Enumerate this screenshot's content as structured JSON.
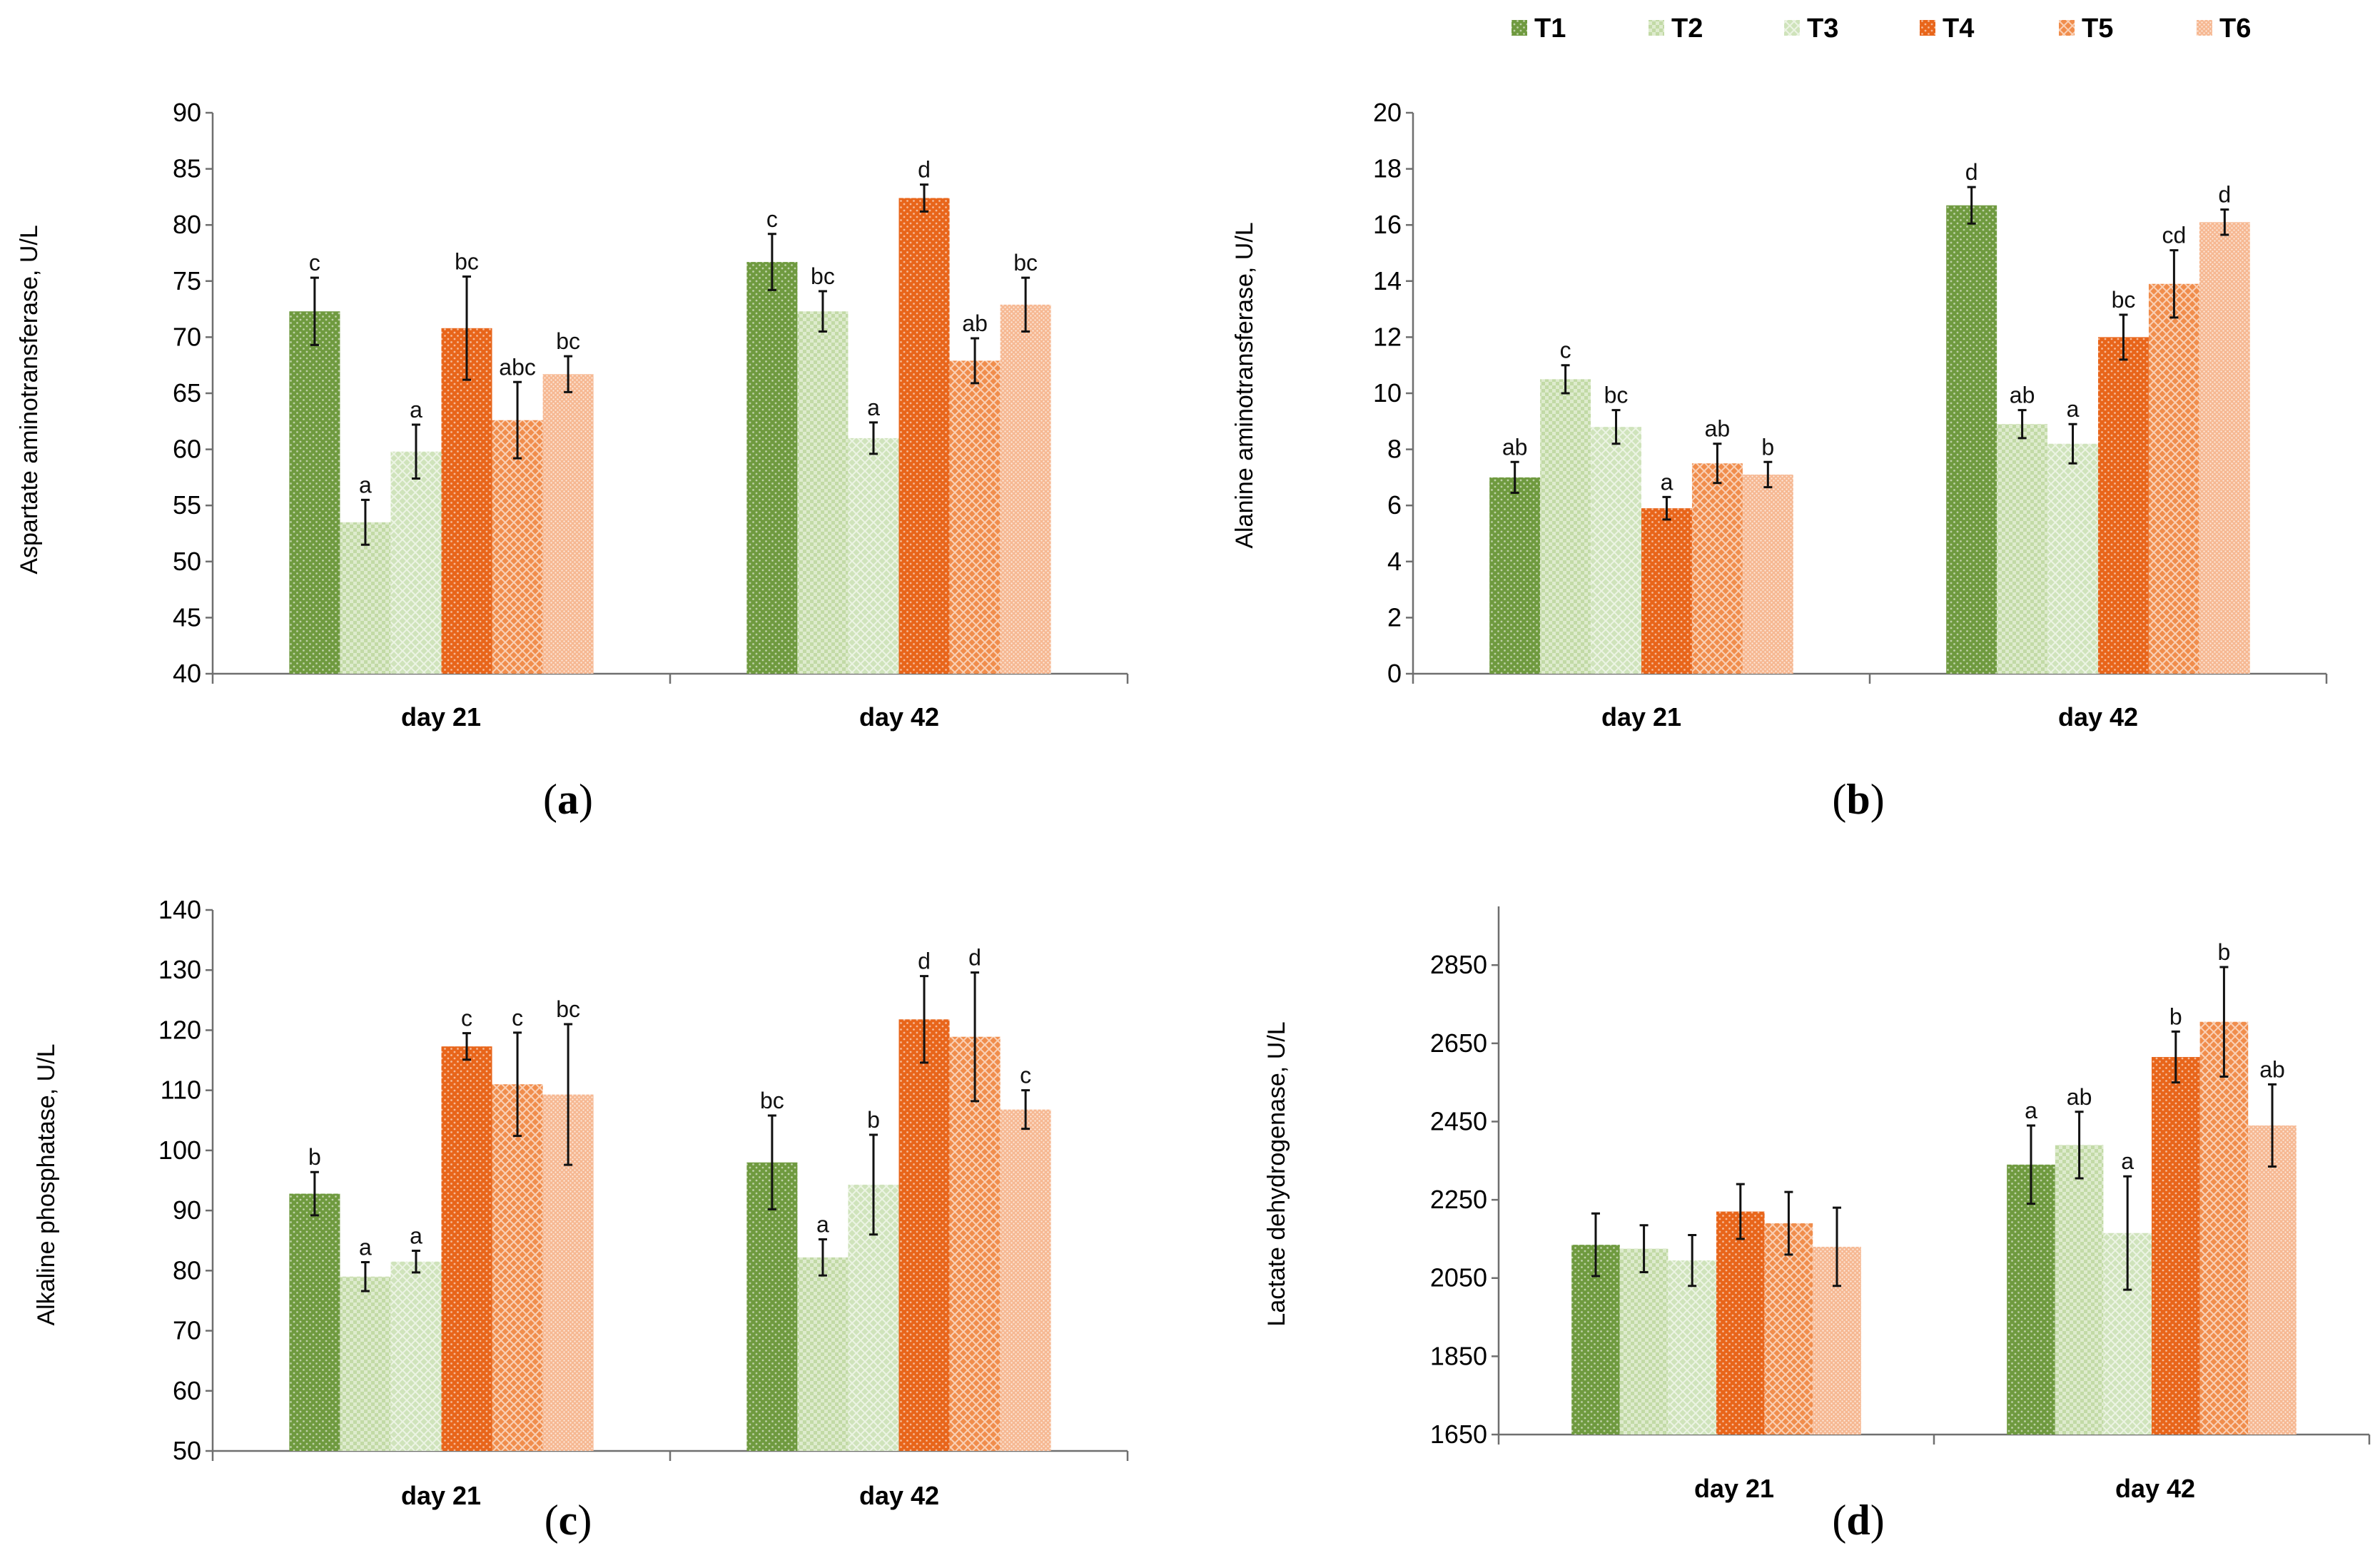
{
  "legend": [
    {
      "name": "T1",
      "color": "#6f9a3f",
      "pattern": "dots"
    },
    {
      "name": "T2",
      "color": "#c2daa6",
      "pattern": "checker"
    },
    {
      "name": "T3",
      "color": "#cfe3bb",
      "pattern": "diamond"
    },
    {
      "name": "T4",
      "color": "#e8651a",
      "pattern": "dots"
    },
    {
      "name": "T5",
      "color": "#f08d4c",
      "pattern": "diamond"
    },
    {
      "name": "T6",
      "color": "#f6b892",
      "pattern": "fine"
    }
  ],
  "chart_data": [
    {
      "type": "bar",
      "panel_label": "a",
      "ylabel": "Aspartate aminotransferase, U/L",
      "categories": [
        "day 21",
        "day 42"
      ],
      "ylim": [
        40,
        90
      ],
      "yticks": [
        40,
        45,
        50,
        55,
        60,
        65,
        70,
        75,
        80,
        85,
        90
      ],
      "series": [
        {
          "name": "T1",
          "values": [
            72.3,
            76.7
          ],
          "errors": [
            3.0,
            2.5
          ],
          "letters": [
            "c",
            "c"
          ]
        },
        {
          "name": "T2",
          "values": [
            53.5,
            72.3
          ],
          "errors": [
            2.0,
            1.8
          ],
          "letters": [
            "a",
            "bc"
          ]
        },
        {
          "name": "T3",
          "values": [
            59.8,
            61.0
          ],
          "errors": [
            2.4,
            1.4
          ],
          "letters": [
            "a",
            "a"
          ]
        },
        {
          "name": "T4",
          "values": [
            70.8,
            82.4
          ],
          "errors": [
            4.6,
            1.2
          ],
          "letters": [
            "bc",
            "d"
          ]
        },
        {
          "name": "T5",
          "values": [
            62.6,
            67.9
          ],
          "errors": [
            3.4,
            2.0
          ],
          "letters": [
            "abc",
            "ab"
          ]
        },
        {
          "name": "T6",
          "values": [
            66.7,
            72.9
          ],
          "errors": [
            1.6,
            2.4
          ],
          "letters": [
            "bc",
            "bc"
          ]
        }
      ]
    },
    {
      "type": "bar",
      "panel_label": "b",
      "ylabel": "Alanine aminotransferase, U/L",
      "categories": [
        "day 21",
        "day 42"
      ],
      "ylim": [
        0,
        20
      ],
      "yticks": [
        0,
        2,
        4,
        6,
        8,
        10,
        12,
        14,
        16,
        18,
        20
      ],
      "series": [
        {
          "name": "T1",
          "values": [
            7.0,
            16.7
          ],
          "errors": [
            0.55,
            0.65
          ],
          "letters": [
            "ab",
            "d"
          ]
        },
        {
          "name": "T2",
          "values": [
            10.5,
            8.9
          ],
          "errors": [
            0.5,
            0.5
          ],
          "letters": [
            "c",
            "ab"
          ]
        },
        {
          "name": "T3",
          "values": [
            8.8,
            8.2
          ],
          "errors": [
            0.6,
            0.7
          ],
          "letters": [
            "bc",
            "a"
          ]
        },
        {
          "name": "T4",
          "values": [
            5.9,
            12.0
          ],
          "errors": [
            0.4,
            0.8
          ],
          "letters": [
            "a",
            "bc"
          ]
        },
        {
          "name": "T5",
          "values": [
            7.5,
            13.9
          ],
          "errors": [
            0.7,
            1.2
          ],
          "letters": [
            "ab",
            "cd"
          ]
        },
        {
          "name": "T6",
          "values": [
            7.1,
            16.1
          ],
          "errors": [
            0.45,
            0.45
          ],
          "letters": [
            "b",
            "d"
          ]
        }
      ]
    },
    {
      "type": "bar",
      "panel_label": "c",
      "ylabel": "Alkaline phosphatase, U/L",
      "categories": [
        "day 21",
        "day 42"
      ],
      "ylim": [
        50,
        140
      ],
      "yticks": [
        50,
        60,
        70,
        80,
        90,
        100,
        110,
        120,
        130,
        140
      ],
      "series": [
        {
          "name": "T1",
          "values": [
            92.8,
            98.0
          ],
          "errors": [
            3.6,
            7.8
          ],
          "letters": [
            "b",
            "bc"
          ]
        },
        {
          "name": "T2",
          "values": [
            79.0,
            82.2
          ],
          "errors": [
            2.4,
            3.0
          ],
          "letters": [
            "a",
            "a"
          ]
        },
        {
          "name": "T3",
          "values": [
            81.5,
            94.3
          ],
          "errors": [
            1.8,
            8.3
          ],
          "letters": [
            "a",
            "b"
          ]
        },
        {
          "name": "T4",
          "values": [
            117.3,
            121.8
          ],
          "errors": [
            2.2,
            7.2
          ],
          "letters": [
            "c",
            "d"
          ]
        },
        {
          "name": "T5",
          "values": [
            111.0,
            118.9
          ],
          "errors": [
            8.6,
            10.7
          ],
          "letters": [
            "c",
            "d"
          ]
        },
        {
          "name": "T6",
          "values": [
            109.3,
            106.8
          ],
          "errors": [
            11.7,
            3.2
          ],
          "letters": [
            "bc",
            "c"
          ]
        }
      ]
    },
    {
      "type": "bar",
      "panel_label": "d",
      "ylabel": "Lactate dehydrogenase, U/L",
      "categories": [
        "day 21",
        "day 42"
      ],
      "ylim": [
        1650,
        3000
      ],
      "yticks": [
        1650,
        1850,
        2050,
        2250,
        2450,
        2650,
        2850
      ],
      "series": [
        {
          "name": "T1",
          "values": [
            2135,
            2340
          ],
          "errors": [
            80,
            100
          ],
          "letters": [
            "",
            "a"
          ]
        },
        {
          "name": "T2",
          "values": [
            2125,
            2390
          ],
          "errors": [
            60,
            85
          ],
          "letters": [
            "",
            "ab"
          ]
        },
        {
          "name": "T3",
          "values": [
            2095,
            2165
          ],
          "errors": [
            65,
            145
          ],
          "letters": [
            "",
            "a"
          ]
        },
        {
          "name": "T4",
          "values": [
            2220,
            2615
          ],
          "errors": [
            70,
            65
          ],
          "letters": [
            "",
            "b"
          ]
        },
        {
          "name": "T5",
          "values": [
            2190,
            2705
          ],
          "errors": [
            80,
            140
          ],
          "letters": [
            "",
            "b"
          ]
        },
        {
          "name": "T6",
          "values": [
            2130,
            2440
          ],
          "errors": [
            100,
            105
          ],
          "letters": [
            "",
            "ab"
          ]
        }
      ]
    }
  ]
}
